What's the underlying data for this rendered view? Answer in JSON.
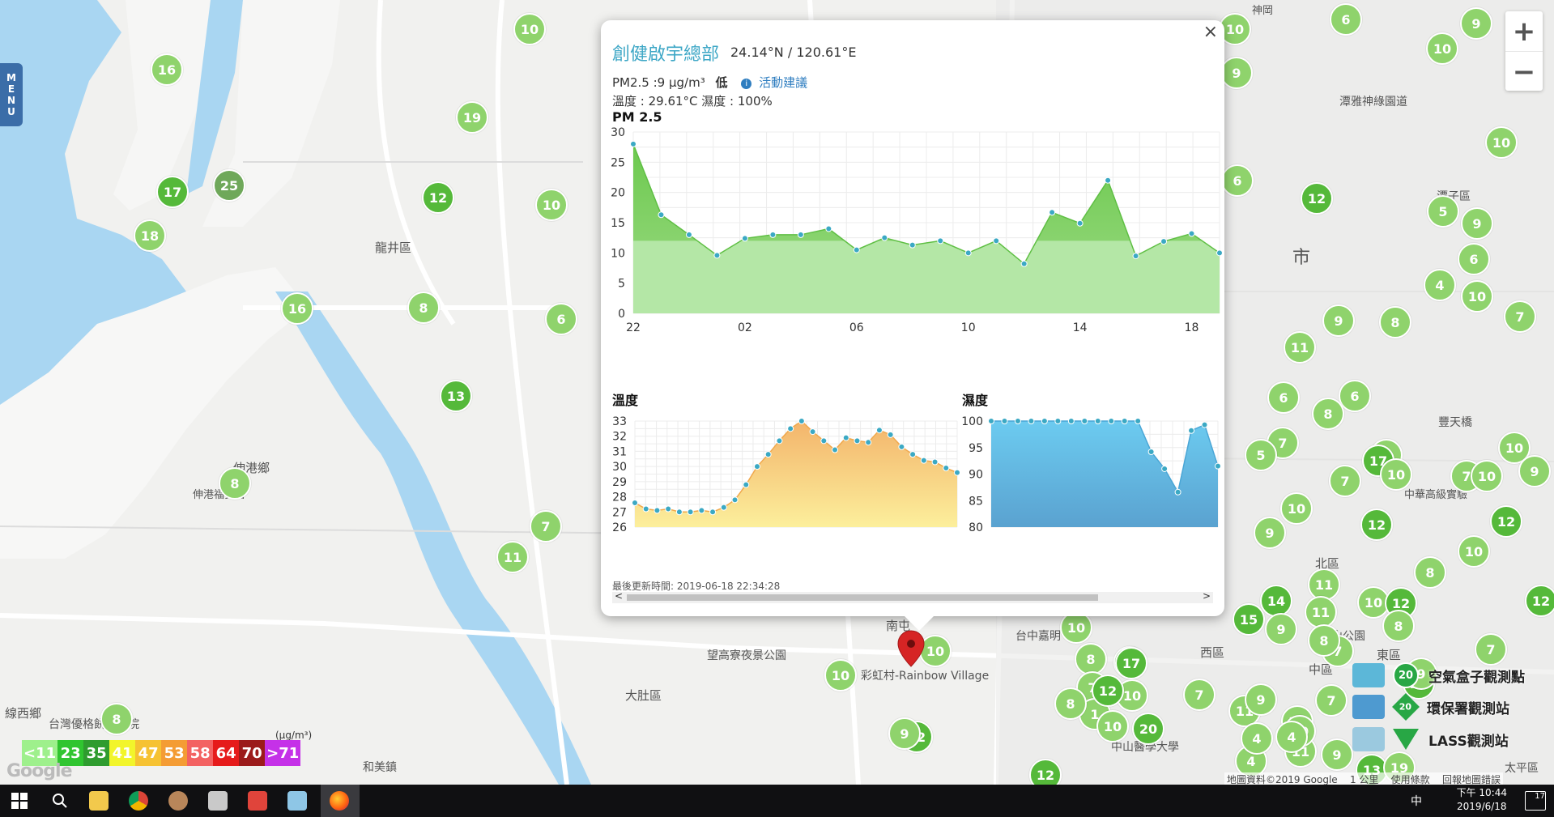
{
  "map": {
    "menu_label": [
      "M",
      "E",
      "N",
      "U"
    ],
    "zoom_in": "+",
    "zoom_out": "−",
    "place_labels": [
      {
        "id": "longjing",
        "text": "龍井區"
      },
      {
        "id": "shengang",
        "text": "伸港鄉"
      },
      {
        "id": "shengang-temple",
        "text": "伸港福安宮"
      },
      {
        "id": "xianxi",
        "text": "線西鄉"
      },
      {
        "id": "dadu",
        "text": "大肚區"
      },
      {
        "id": "wanggao",
        "text": "望高寮夜景公園"
      },
      {
        "id": "nantun",
        "text": "南屯"
      },
      {
        "id": "rainbow",
        "text": "彩虹村-Rainbow Village"
      },
      {
        "id": "taichung-park",
        "text": "台中嘉明"
      },
      {
        "id": "xiqu",
        "text": "西區"
      },
      {
        "id": "shi",
        "text": "市"
      },
      {
        "id": "tanya",
        "text": "潭雅神綠園道"
      },
      {
        "id": "tanzi",
        "text": "潭子區"
      },
      {
        "id": "beiqu",
        "text": "北區"
      },
      {
        "id": "zhongqu",
        "text": "中區"
      },
      {
        "id": "dongqu",
        "text": "東區"
      },
      {
        "id": "zhongshan",
        "text": "中山醫學大學"
      },
      {
        "id": "taiping",
        "text": "太平區"
      },
      {
        "id": "hemei",
        "text": "和美鎮"
      },
      {
        "id": "shenkang",
        "text": "神岡"
      },
      {
        "id": "taiwan-youge",
        "text": "台灣優格餅乾學院"
      },
      {
        "id": "fengtian",
        "text": "豐天橋"
      },
      {
        "id": "zhonghua",
        "text": "中華高級實驗"
      },
      {
        "id": "zhongshan-park",
        "text": "中山公園"
      }
    ],
    "markers": [
      "16",
      "17",
      "25",
      "18",
      "19",
      "12",
      "10",
      "16",
      "8",
      "6",
      "13",
      "8",
      "7",
      "11",
      "10",
      "10",
      "9",
      "6",
      "10",
      "9",
      "10",
      "6",
      "12",
      "5",
      "9",
      "6",
      "4",
      "10",
      "7",
      "9",
      "8",
      "11",
      "6",
      "6",
      "8",
      "7",
      "10",
      "5",
      "8",
      "17",
      "7",
      "10",
      "7",
      "10",
      "12",
      "12",
      "10",
      "8",
      "10",
      "9",
      "11",
      "14",
      "15",
      "11",
      "9",
      "7",
      "12",
      "10",
      "12",
      "9",
      "7",
      "4",
      "9",
      "11",
      "17",
      "10",
      "8",
      "7",
      "1",
      "10",
      "20",
      "8",
      "10",
      "12",
      "7",
      "11",
      "4",
      "10",
      "9",
      "12",
      "12",
      "9",
      "10",
      "17",
      "10",
      "13",
      "19",
      "8",
      "7",
      "8",
      "20",
      "9",
      "10",
      "4",
      "8"
    ]
  },
  "popup": {
    "close": "×",
    "station_name": "創健啟宇總部",
    "coords": "24.14°N / 120.61°E",
    "pm_text": "PM2.5 :9 μg/m³",
    "pm_level": "低",
    "info_icon": "i",
    "advice_link": "活動建議",
    "temp_humidity": "溫度 : 29.61°C 濕度 : 100%",
    "pm_chart_title": "PM 2.5",
    "temp_chart_title": "溫度",
    "hum_chart_title": "濕度",
    "last_update": "最後更新時間: 2019-06-18 22:34:28",
    "scroll_left": "<",
    "scroll_right": ">"
  },
  "chart_data": [
    {
      "type": "area",
      "title": "PM 2.5",
      "x_ticks": [
        "22",
        "02",
        "06",
        "10",
        "14",
        "18"
      ],
      "ylim": [
        0,
        30
      ],
      "y_ticks": [
        0,
        5,
        10,
        15,
        20,
        25,
        30
      ],
      "x_hours": [
        0,
        1,
        2,
        3,
        4,
        5,
        6,
        7,
        8,
        9,
        10,
        11,
        12,
        13,
        14,
        15,
        16,
        17,
        18,
        19,
        20,
        21
      ],
      "series": [
        {
          "values": [
            28,
            16.3,
            13,
            9.6,
            12.4,
            13,
            13,
            14,
            10.5,
            12.5,
            11.3,
            12,
            10,
            12,
            8.2,
            16.7,
            14.9,
            22,
            9.5,
            11.9,
            13.2,
            10
          ]
        }
      ],
      "threshold": 12,
      "colors": {
        "above": "#6cc94e",
        "below": "#b4e7a6",
        "point": "#3ba9c4"
      }
    },
    {
      "type": "area",
      "title": "溫度",
      "ylim": [
        26,
        33
      ],
      "y_ticks": [
        26,
        27,
        28,
        29,
        30,
        31,
        32,
        33
      ],
      "series": [
        {
          "values": [
            27.6,
            27.2,
            27.1,
            27.2,
            27,
            27,
            27.1,
            27,
            27.3,
            27.8,
            28.8,
            30,
            30.8,
            31.7,
            32.5,
            33,
            32.3,
            31.7,
            31.1,
            31.9,
            31.7,
            31.6,
            32.4,
            32.1,
            31.3,
            30.8,
            30.4,
            30.3,
            29.9,
            29.6
          ]
        }
      ],
      "colors": {
        "fill_top": "#f3b46b",
        "fill_bottom": "#fcef9c",
        "point": "#3ba9c4"
      }
    },
    {
      "type": "area",
      "title": "濕度",
      "ylim": [
        80,
        100
      ],
      "y_ticks": [
        80,
        85,
        90,
        95,
        100
      ],
      "series": [
        {
          "values": [
            100,
            100,
            100,
            100,
            100,
            100,
            100,
            100,
            100,
            100,
            100,
            100,
            94.2,
            91,
            86.6,
            98.2,
            99.3,
            91.5
          ]
        }
      ],
      "colors": {
        "fill_top": "#6ccbf0",
        "fill_bottom": "#5aa2d0",
        "point": "#3ba9c4"
      }
    }
  ],
  "legend": {
    "unit": "(μg/m³)",
    "items": [
      {
        "label": "<11",
        "color": "#9ef08c"
      },
      {
        "label": "23",
        "color": "#30c530"
      },
      {
        "label": "35",
        "color": "#2f9c2f"
      },
      {
        "label": "41",
        "color": "#f2f52b"
      },
      {
        "label": "47",
        "color": "#f6c232"
      },
      {
        "label": "53",
        "color": "#f49c34"
      },
      {
        "label": "58",
        "color": "#f36262"
      },
      {
        "label": "64",
        "color": "#e61b1b"
      },
      {
        "label": "70",
        "color": "#9b1b1b"
      },
      {
        "label": ">71",
        "color": "#c531e8"
      }
    ]
  },
  "layer_legend": {
    "airbox_count": "20",
    "airbox_label": "空氣盒子觀測點",
    "epa_count": "20",
    "epa_label": "環保署觀測站",
    "lass_count": "20",
    "lass_label": "LASS觀測站"
  },
  "attribution": {
    "map_data": "地圖資料©2019 Google",
    "scale": "1 公里",
    "terms": "使用條款",
    "report": "回報地圖錯誤",
    "logo": "Google"
  },
  "taskbar": {
    "time_period": "下午 10:44",
    "date": "2019/6/18",
    "ime": "中",
    "notif_count": "17"
  }
}
